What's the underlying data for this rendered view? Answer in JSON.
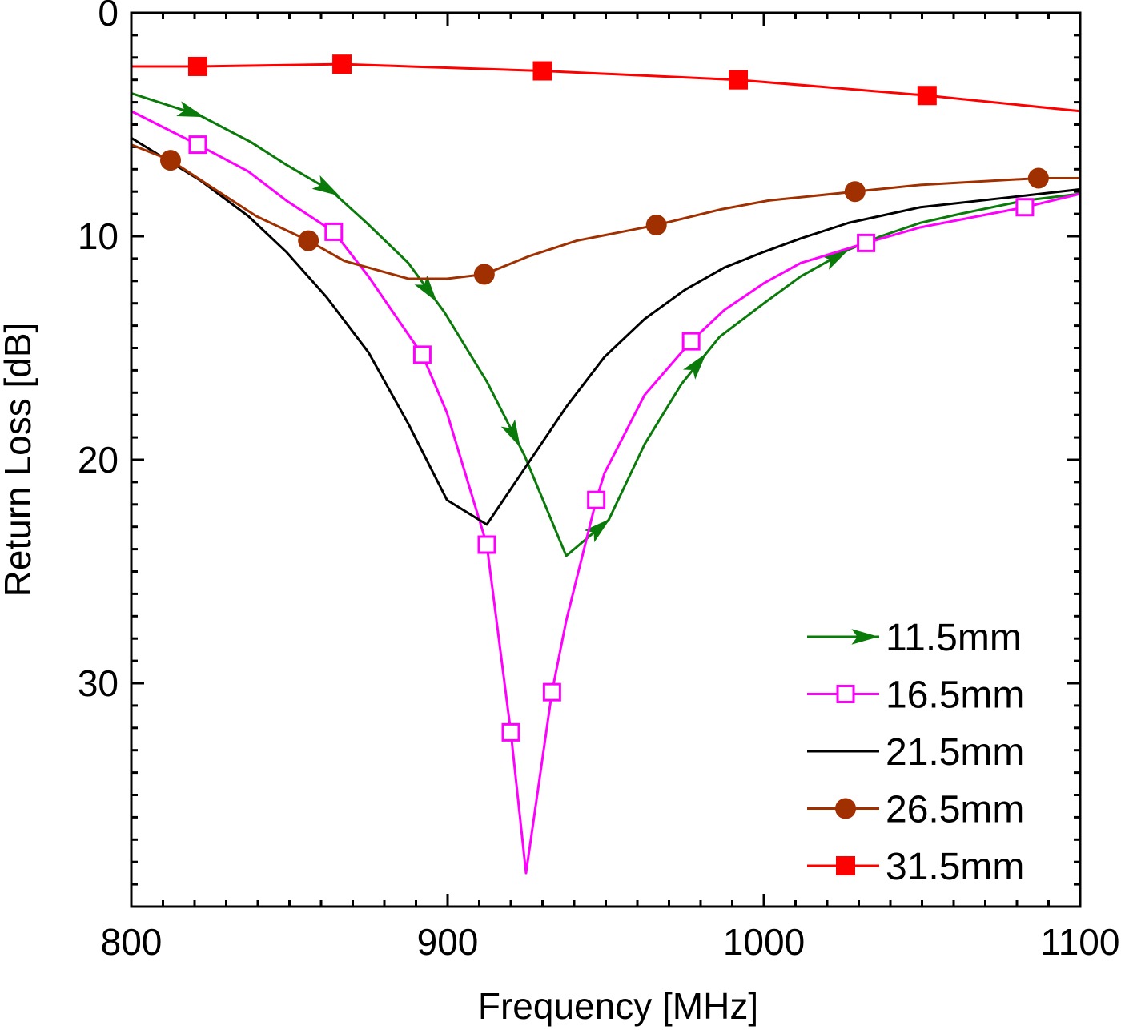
{
  "chart_data": {
    "type": "line",
    "xlabel": "Frequency [MHz]",
    "ylabel": "Return Loss [dB]",
    "xlim": [
      800,
      1100
    ],
    "ylim": [
      0,
      40
    ],
    "y_inverted": true,
    "xticks": [
      "800",
      "900",
      "1000",
      "1100"
    ],
    "xtick_values": [
      800,
      900,
      1000,
      1100
    ],
    "yticks": [
      "0",
      "10",
      "20",
      "30"
    ],
    "ytick_values": [
      0,
      10,
      20,
      30
    ],
    "x_minor_step": 10,
    "y_minor_step": 1,
    "grid": false,
    "legend_position": "bottom-right",
    "series": [
      {
        "name": "11.5mm",
        "color": "#0a7a0a",
        "marker": "arrow",
        "x": [
          800,
          821.8,
          838,
          849,
          863.5,
          874.4,
          887.6,
          899,
          912.4,
          924.3,
          937.5,
          950.9,
          962.3,
          974,
          986,
          1000,
          1011.6,
          1026.8,
          1037,
          1049.5,
          1062,
          1082.5,
          1100
        ],
        "y": [
          3.6,
          4.6,
          5.8,
          6.8,
          8.0,
          9.4,
          11.2,
          13.4,
          16.5,
          19.8,
          24.3,
          22.7,
          19.3,
          16.6,
          14.5,
          13.0,
          11.8,
          10.6,
          10.0,
          9.4,
          9.0,
          8.4,
          8.1
        ],
        "marker_x": [
          819,
          862,
          894,
          921,
          948,
          979,
          1023
        ]
      },
      {
        "name": "16.5mm",
        "color": "#ff00ff",
        "marker": "open-square",
        "x": [
          800,
          821,
          837,
          849,
          864,
          875,
          887.6,
          892,
          899.8,
          912.4,
          920,
          924.8,
          933,
          937.5,
          947,
          949.6,
          962.3,
          977,
          987.5,
          1000,
          1011.6,
          1032.3,
          1049.5,
          1082.5,
          1100
        ],
        "y": [
          4.4,
          5.9,
          7.1,
          8.4,
          9.8,
          11.8,
          14.4,
          15.3,
          17.9,
          23.8,
          32.2,
          38.5,
          30.4,
          27.2,
          21.8,
          20.6,
          17.1,
          14.7,
          13.3,
          12.1,
          11.2,
          10.3,
          9.6,
          8.7,
          8.1
        ],
        "marker_x": [
          821,
          864,
          892,
          912.4,
          920,
          933,
          947,
          977,
          1032.3,
          1082.5
        ]
      },
      {
        "name": "21.5mm",
        "color": "#000000",
        "marker": "none",
        "x": [
          800,
          821.8,
          837,
          849,
          861.6,
          875,
          887.6,
          899.8,
          912.4,
          924.3,
          937.7,
          949.6,
          962.3,
          975,
          987.5,
          1000,
          1011.6,
          1026.8,
          1049.5,
          1075,
          1100
        ],
        "y": [
          5.6,
          7.5,
          9.1,
          10.7,
          12.7,
          15.2,
          18.4,
          21.8,
          22.9,
          20.4,
          17.6,
          15.4,
          13.7,
          12.4,
          11.4,
          10.7,
          10.1,
          9.4,
          8.7,
          8.3,
          7.9
        ],
        "marker_x": []
      },
      {
        "name": "26.5mm",
        "color": "#a03000",
        "marker": "filled-circle",
        "x": [
          800,
          812.4,
          824.3,
          839.5,
          856,
          867.3,
          887.6,
          899.8,
          911.6,
          925.6,
          940.8,
          966,
          986.3,
          1001.5,
          1028.8,
          1049.5,
          1086.8,
          1100
        ],
        "y": [
          5.9,
          6.6,
          7.7,
          9.1,
          10.2,
          11.1,
          11.9,
          11.9,
          11.7,
          10.9,
          10.2,
          9.5,
          8.8,
          8.4,
          8.0,
          7.7,
          7.4,
          7.4
        ],
        "marker_x": [
          812.4,
          856,
          911.6,
          966,
          1028.8,
          1086.8
        ]
      },
      {
        "name": "31.5mm",
        "color": "#ff0000",
        "marker": "filled-square",
        "x": [
          800,
          821,
          866.6,
          930,
          991.9,
          1051.6,
          1100
        ],
        "y": [
          2.4,
          2.4,
          2.3,
          2.6,
          3.0,
          3.7,
          4.4
        ],
        "marker_x": [
          821,
          866.6,
          930,
          991.9,
          1051.6
        ]
      }
    ]
  }
}
